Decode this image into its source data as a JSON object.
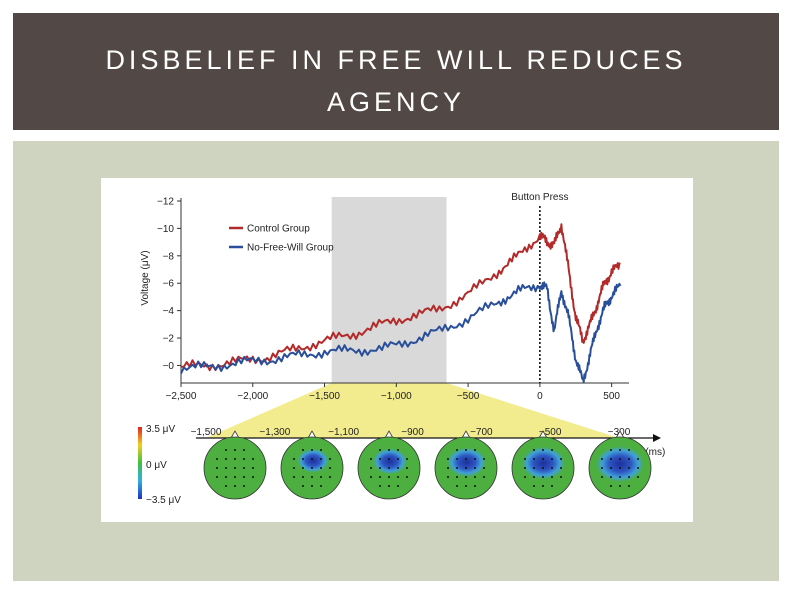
{
  "slide": {
    "title_line1": "DISBELIEF IN FREE WILL REDUCES",
    "title_line2": "AGENCY"
  },
  "colors": {
    "title_bar": "#524845",
    "panel": "#cfd4c0",
    "control": "#b22a2a",
    "no_free_will": "#2a4f9a",
    "shade": "#d9d9d9",
    "highlight": "#f2ec8e",
    "head_green": "#4caf3f",
    "head_blue": "#2c50c8"
  },
  "chart_data": [
    {
      "type": "line",
      "xlabel": "",
      "ylabel": "Voltage (μV)",
      "xlim": [
        -2500,
        600
      ],
      "ylim": [
        1.5,
        -12
      ],
      "y_inverted": true,
      "x_ticks": [
        "−2,500",
        "−2,000",
        "−1,500",
        "−1,000",
        "−500",
        "0",
        "500"
      ],
      "x_tick_values": [
        -2500,
        -2000,
        -1500,
        -1000,
        -500,
        0,
        500
      ],
      "y_ticks": [
        "−12",
        "−10",
        "−8",
        "−6",
        "−4",
        "−2",
        "−0"
      ],
      "y_tick_values": [
        -12,
        -10,
        -8,
        -6,
        -4,
        -2,
        0
      ],
      "shaded_window": [
        -1450,
        -650
      ],
      "annotation": {
        "label": "Button Press",
        "x": 0
      },
      "legend": {
        "placement": "top-left"
      },
      "series": [
        {
          "name": "Control Group",
          "x": [
            -2500,
            -2300,
            -2100,
            -1900,
            -1700,
            -1500,
            -1300,
            -1100,
            -900,
            -700,
            -500,
            -300,
            -150,
            0,
            50,
            100,
            150,
            200,
            250,
            300,
            350,
            400,
            450,
            500,
            560
          ],
          "y": [
            0.1,
            0.0,
            -0.3,
            -0.6,
            -1.2,
            -1.8,
            -2.3,
            -3.0,
            -3.6,
            -4.1,
            -5.2,
            -6.8,
            -8.0,
            -9.5,
            -9.0,
            -8.8,
            -10.3,
            -7.0,
            -3.5,
            -1.8,
            -3.0,
            -4.5,
            -6.0,
            -6.8,
            -7.4
          ]
        },
        {
          "name": "No-Free-Will Group",
          "x": [
            -2500,
            -2300,
            -2100,
            -1900,
            -1700,
            -1500,
            -1300,
            -1100,
            -900,
            -700,
            -500,
            -300,
            -150,
            0,
            50,
            100,
            150,
            200,
            250,
            300,
            350,
            400,
            450,
            500,
            560
          ],
          "y": [
            0.2,
            0.1,
            -0.2,
            -0.4,
            -0.7,
            -1.0,
            -1.1,
            -1.2,
            -1.8,
            -2.5,
            -3.4,
            -4.6,
            -5.4,
            -5.9,
            -5.6,
            -2.5,
            -5.5,
            -3.5,
            -0.5,
            1.2,
            -0.8,
            -2.8,
            -4.2,
            -5.1,
            -5.8
          ]
        }
      ]
    },
    {
      "type": "heatmap",
      "title": "",
      "xlabel": "Time (ms)",
      "x_ticks": [
        "−1,500",
        "−1,300",
        "−1,100",
        "−900",
        "−700",
        "−500",
        "−300"
      ],
      "colorbar": {
        "max_label": "3.5 μV",
        "mid_label": "0 μV",
        "min_label": "−3.5 μV"
      },
      "scalp_maps": [
        {
          "time": -1400,
          "negativity": 0.0
        },
        {
          "time": -1200,
          "negativity": 0.45
        },
        {
          "time": -1000,
          "negativity": 0.55
        },
        {
          "time": -800,
          "negativity": 0.7
        },
        {
          "time": -600,
          "negativity": 0.85
        },
        {
          "time": -400,
          "negativity": 1.0
        }
      ]
    }
  ]
}
